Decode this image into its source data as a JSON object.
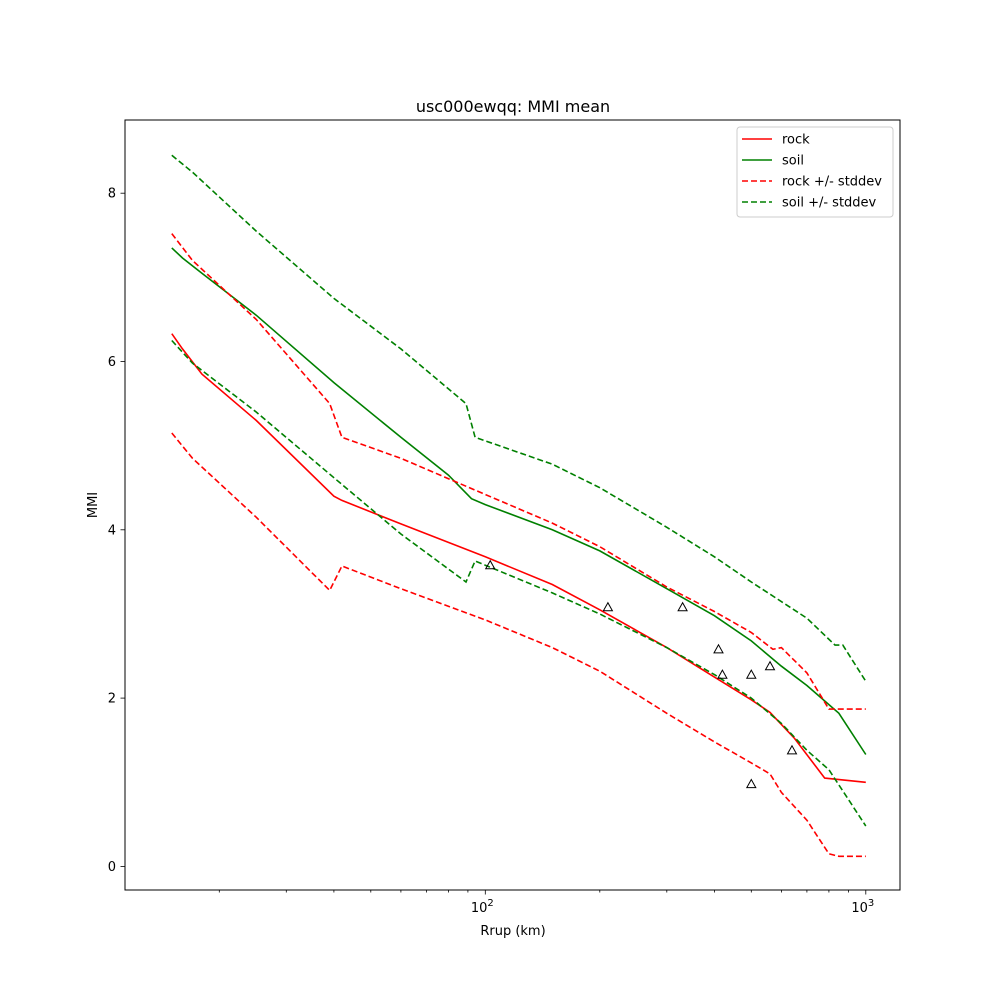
{
  "chart_data": {
    "type": "line",
    "title": "usc000ewqq: MMI mean",
    "xlabel": "Rrup (km)",
    "ylabel": "MMI",
    "xscale": "log",
    "xlim": [
      11.3,
      1230
    ],
    "ylim": [
      -0.28,
      8.87
    ],
    "x_major_ticks": [
      {
        "value": 100,
        "base": "10",
        "exp": "2"
      },
      {
        "value": 1000,
        "base": "10",
        "exp": "3"
      }
    ],
    "x_minor_ticks": [
      20,
      30,
      40,
      50,
      60,
      70,
      80,
      90,
      200,
      300,
      400,
      500,
      600,
      700,
      800,
      900
    ],
    "y_ticks": [
      {
        "value": 0,
        "label": "0"
      },
      {
        "value": 2,
        "label": "2"
      },
      {
        "value": 4,
        "label": "4"
      },
      {
        "value": 6,
        "label": "6"
      },
      {
        "value": 8,
        "label": "8"
      }
    ],
    "grid": false,
    "legend_position": "top-right",
    "series": [
      {
        "name": "rock",
        "color": "#ff0000",
        "style": "solid",
        "points": [
          [
            15,
            6.33
          ],
          [
            16,
            6.15
          ],
          [
            18,
            5.85
          ],
          [
            25,
            5.3
          ],
          [
            40,
            4.4
          ],
          [
            42,
            4.35
          ],
          [
            60,
            4.07
          ],
          [
            100,
            3.68
          ],
          [
            150,
            3.35
          ],
          [
            200,
            3.05
          ],
          [
            300,
            2.6
          ],
          [
            400,
            2.25
          ],
          [
            500,
            1.98
          ],
          [
            560,
            1.83
          ],
          [
            650,
            1.52
          ],
          [
            780,
            1.05
          ],
          [
            1000,
            1.0
          ]
        ]
      },
      {
        "name": "soil",
        "color": "#008000",
        "style": "solid",
        "points": [
          [
            15,
            7.35
          ],
          [
            16,
            7.23
          ],
          [
            18,
            7.05
          ],
          [
            25,
            6.55
          ],
          [
            40,
            5.75
          ],
          [
            60,
            5.1
          ],
          [
            80,
            4.65
          ],
          [
            92,
            4.37
          ],
          [
            100,
            4.3
          ],
          [
            150,
            4.0
          ],
          [
            200,
            3.75
          ],
          [
            300,
            3.3
          ],
          [
            400,
            2.98
          ],
          [
            500,
            2.68
          ],
          [
            600,
            2.38
          ],
          [
            700,
            2.15
          ],
          [
            850,
            1.82
          ],
          [
            1000,
            1.33
          ]
        ]
      },
      {
        "name": "rock +/- stddev",
        "color": "#ff0000",
        "style": "dashed",
        "points": [
          [
            15,
            7.52
          ],
          [
            17,
            7.2
          ],
          [
            25,
            6.5
          ],
          [
            39,
            5.5
          ],
          [
            42,
            5.1
          ],
          [
            60,
            4.85
          ],
          [
            100,
            4.42
          ],
          [
            150,
            4.08
          ],
          [
            200,
            3.8
          ],
          [
            300,
            3.32
          ],
          [
            400,
            3.03
          ],
          [
            500,
            2.78
          ],
          [
            570,
            2.58
          ],
          [
            600,
            2.6
          ],
          [
            700,
            2.3
          ],
          [
            800,
            1.87
          ],
          [
            1000,
            1.87
          ]
        ]
      },
      {
        "name": "rock +/- stddev",
        "color": "#ff0000",
        "style": "dashed",
        "legend": false,
        "points": [
          [
            15,
            5.15
          ],
          [
            17,
            4.85
          ],
          [
            25,
            4.15
          ],
          [
            39,
            3.28
          ],
          [
            42,
            3.57
          ],
          [
            60,
            3.3
          ],
          [
            100,
            2.93
          ],
          [
            150,
            2.6
          ],
          [
            200,
            2.32
          ],
          [
            300,
            1.82
          ],
          [
            400,
            1.48
          ],
          [
            500,
            1.23
          ],
          [
            560,
            1.1
          ],
          [
            600,
            0.88
          ],
          [
            700,
            0.55
          ],
          [
            800,
            0.15
          ],
          [
            850,
            0.12
          ],
          [
            1000,
            0.12
          ]
        ]
      },
      {
        "name": "soil +/- stddev",
        "color": "#008000",
        "style": "dashed",
        "points": [
          [
            15,
            8.45
          ],
          [
            17,
            8.25
          ],
          [
            25,
            7.55
          ],
          [
            40,
            6.75
          ],
          [
            60,
            6.15
          ],
          [
            89,
            5.5
          ],
          [
            94,
            5.1
          ],
          [
            150,
            4.78
          ],
          [
            200,
            4.5
          ],
          [
            300,
            4.03
          ],
          [
            400,
            3.68
          ],
          [
            500,
            3.38
          ],
          [
            700,
            2.95
          ],
          [
            830,
            2.63
          ],
          [
            870,
            2.63
          ],
          [
            1000,
            2.2
          ]
        ]
      },
      {
        "name": "soil +/- stddev",
        "color": "#008000",
        "style": "dashed",
        "legend": false,
        "points": [
          [
            15,
            6.25
          ],
          [
            17,
            5.98
          ],
          [
            25,
            5.4
          ],
          [
            40,
            4.62
          ],
          [
            60,
            3.95
          ],
          [
            89,
            3.38
          ],
          [
            94,
            3.63
          ],
          [
            100,
            3.58
          ],
          [
            150,
            3.25
          ],
          [
            200,
            3.0
          ],
          [
            300,
            2.6
          ],
          [
            400,
            2.28
          ],
          [
            500,
            2.0
          ],
          [
            600,
            1.7
          ],
          [
            700,
            1.38
          ],
          [
            800,
            1.15
          ],
          [
            1000,
            0.48
          ]
        ]
      }
    ],
    "observations": {
      "marker": "triangle",
      "points": [
        [
          103,
          3.58
        ],
        [
          210,
          3.08
        ],
        [
          330,
          3.08
        ],
        [
          410,
          2.58
        ],
        [
          420,
          2.28
        ],
        [
          500,
          2.28
        ],
        [
          560,
          2.38
        ],
        [
          640,
          1.38
        ],
        [
          500,
          0.98
        ]
      ]
    }
  }
}
